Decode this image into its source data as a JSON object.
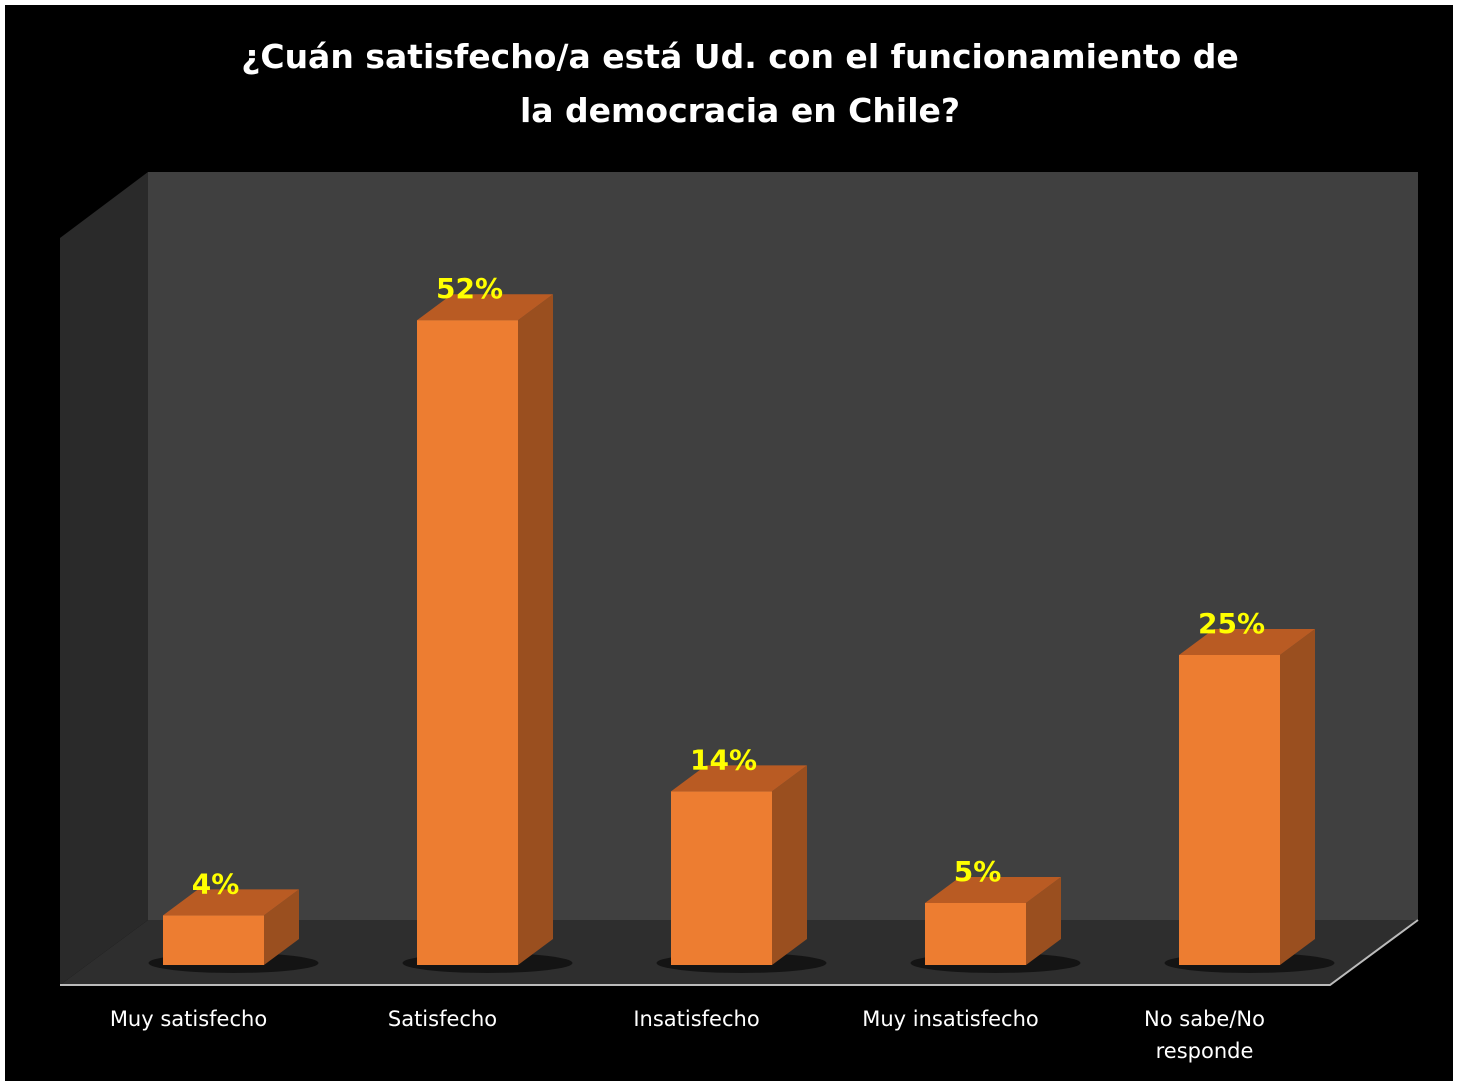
{
  "chart_data": {
    "type": "bar3d",
    "title": "¿Cuán satisfecho/a está Ud. con el funcionamiento de la democracia en Chile?",
    "categories": [
      "Muy satisfecho",
      "Satisfecho",
      "Insatisfecho",
      "Muy insatisfecho",
      "No sabe/No responde"
    ],
    "values": [
      4,
      52,
      14,
      5,
      25
    ],
    "value_labels": [
      "4%",
      "52%",
      "14%",
      "5%",
      "25%"
    ],
    "color": "#ed7d31",
    "label_color": "#ffff00"
  }
}
